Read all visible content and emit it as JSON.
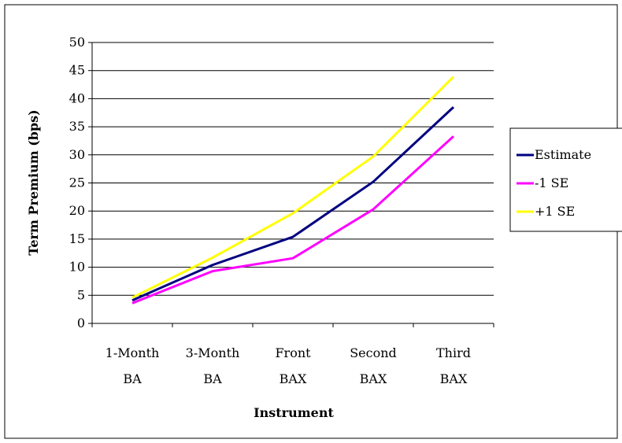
{
  "chart_data": {
    "type": "line",
    "title": "",
    "xlabel": "Instrument",
    "ylabel": "Term Premium (bps)",
    "ylim": [
      0,
      50
    ],
    "yticks": [
      0,
      5,
      10,
      15,
      20,
      25,
      30,
      35,
      40,
      45,
      50
    ],
    "grid": "horizontal",
    "legend_position": "right",
    "categories": [
      [
        "1-Month",
        "BA"
      ],
      [
        "3-Month",
        "BA"
      ],
      [
        "Front",
        "BAX"
      ],
      [
        "Second",
        "BAX"
      ],
      [
        "Third",
        "BAX"
      ]
    ],
    "series": [
      {
        "name": "Estimate",
        "color": "#000080",
        "values": [
          4.1,
          10.4,
          15.4,
          25.2,
          38.5
        ]
      },
      {
        "name": "-1 SE",
        "color": "#ff00ff",
        "values": [
          3.6,
          9.3,
          11.6,
          20.3,
          33.3
        ]
      },
      {
        "name": "+1 SE",
        "color": "#ffff00",
        "values": [
          4.6,
          11.7,
          19.6,
          29.7,
          43.9
        ]
      }
    ]
  }
}
